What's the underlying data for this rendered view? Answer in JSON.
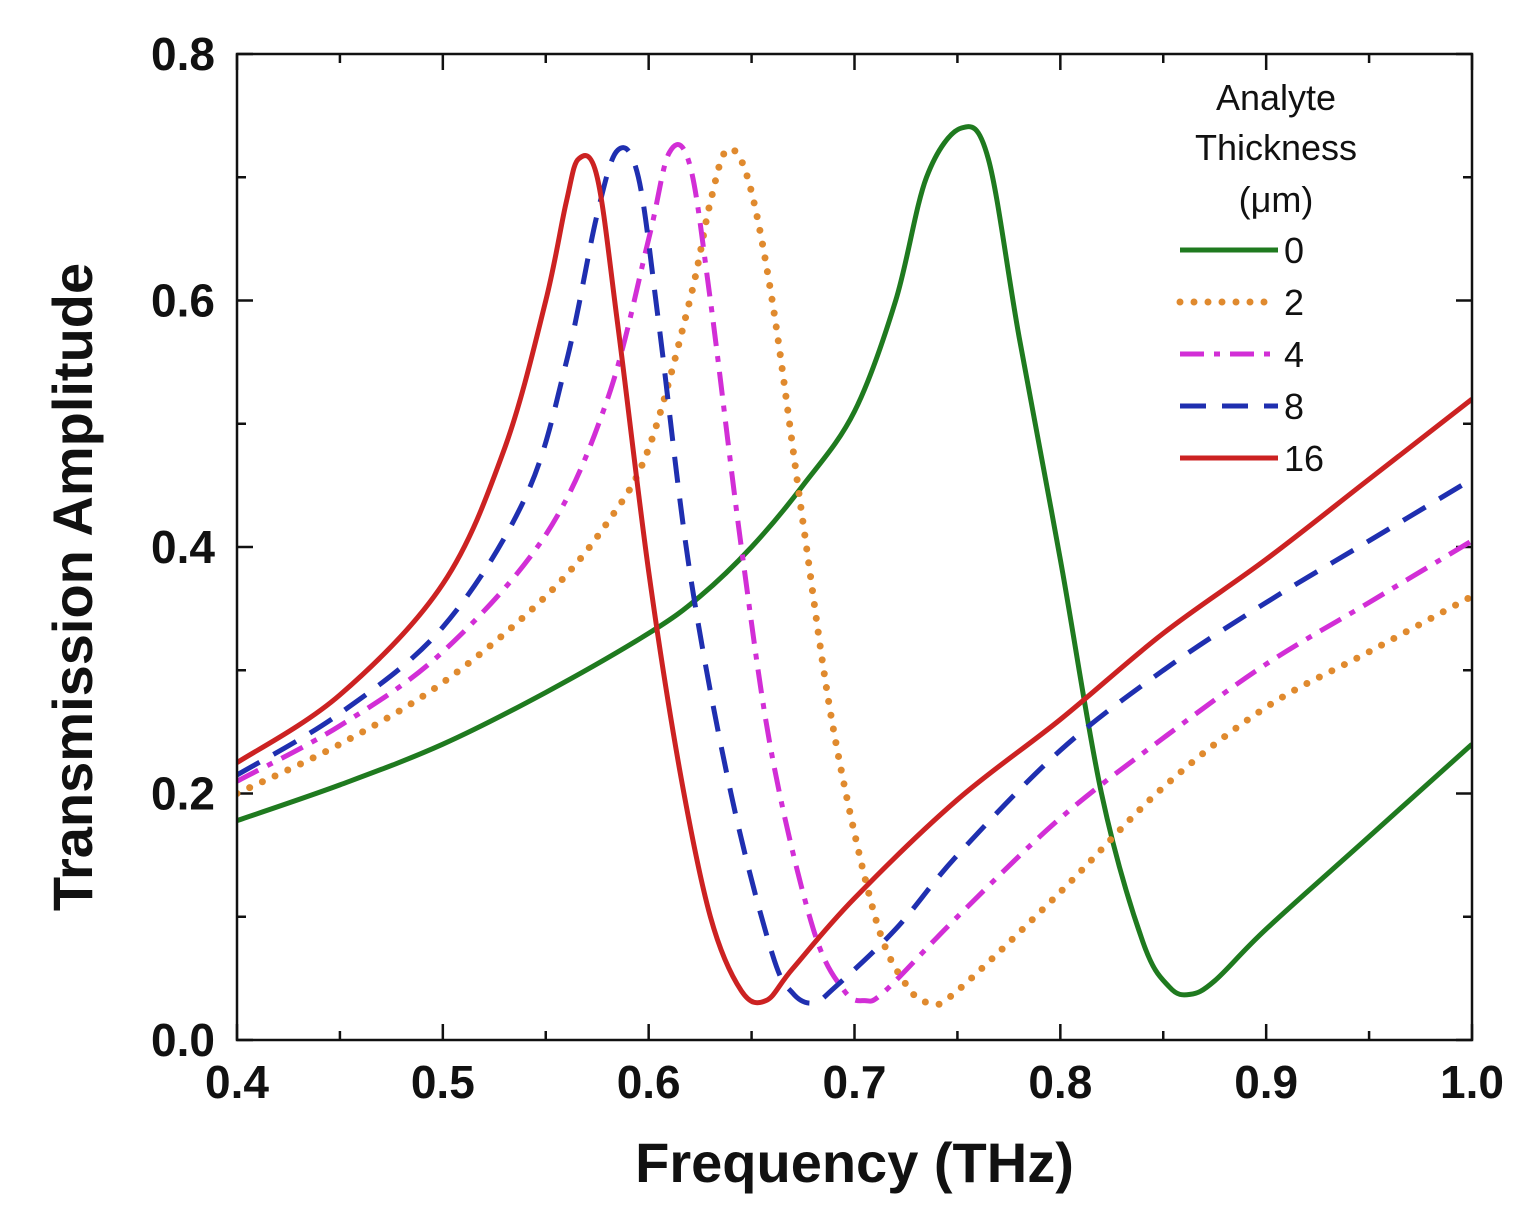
{
  "chart_data": {
    "type": "line",
    "title": "",
    "xlabel": "Frequency (THz)",
    "ylabel": "Transmission Amplitude",
    "xlim": [
      0.4,
      1.0
    ],
    "ylim": [
      0.0,
      0.8
    ],
    "x_major_ticks": [
      0.4,
      0.5,
      0.6,
      0.7,
      0.8,
      0.9,
      1.0
    ],
    "x_tick_labels": [
      "0.4",
      "0.5",
      "0.6",
      "0.7",
      "0.8",
      "0.9",
      "1.0"
    ],
    "y_major_ticks": [
      0.0,
      0.2,
      0.4,
      0.6,
      0.8
    ],
    "y_tick_labels": [
      "0.0",
      "0.2",
      "0.4",
      "0.6",
      "0.8"
    ],
    "grid": false,
    "legend": {
      "placement": "top-right",
      "title_lines": [
        "Analyte",
        "Thickness",
        "(μm)"
      ]
    },
    "series": [
      {
        "name": "0",
        "color": "#1f7a1f",
        "style": "solid",
        "points": [
          [
            0.4,
            0.178
          ],
          [
            0.45,
            0.207
          ],
          [
            0.5,
            0.24
          ],
          [
            0.55,
            0.282
          ],
          [
            0.6,
            0.33
          ],
          [
            0.625,
            0.36
          ],
          [
            0.65,
            0.4
          ],
          [
            0.675,
            0.45
          ],
          [
            0.7,
            0.51
          ],
          [
            0.72,
            0.6
          ],
          [
            0.735,
            0.7
          ],
          [
            0.752,
            0.74
          ],
          [
            0.765,
            0.715
          ],
          [
            0.78,
            0.57
          ],
          [
            0.8,
            0.39
          ],
          [
            0.82,
            0.2
          ],
          [
            0.84,
            0.08
          ],
          [
            0.853,
            0.043
          ],
          [
            0.863,
            0.037
          ],
          [
            0.875,
            0.048
          ],
          [
            0.9,
            0.09
          ],
          [
            0.95,
            0.165
          ],
          [
            1.0,
            0.24
          ]
        ]
      },
      {
        "name": "2",
        "color": "#e08a2e",
        "style": "dotted",
        "points": [
          [
            0.4,
            0.2
          ],
          [
            0.45,
            0.24
          ],
          [
            0.5,
            0.29
          ],
          [
            0.55,
            0.36
          ],
          [
            0.58,
            0.42
          ],
          [
            0.6,
            0.48
          ],
          [
            0.62,
            0.6
          ],
          [
            0.63,
            0.68
          ],
          [
            0.638,
            0.722
          ],
          [
            0.648,
            0.7
          ],
          [
            0.66,
            0.6
          ],
          [
            0.675,
            0.42
          ],
          [
            0.69,
            0.25
          ],
          [
            0.71,
            0.1
          ],
          [
            0.725,
            0.045
          ],
          [
            0.737,
            0.03
          ],
          [
            0.75,
            0.04
          ],
          [
            0.8,
            0.12
          ],
          [
            0.85,
            0.205
          ],
          [
            0.9,
            0.27
          ],
          [
            0.95,
            0.315
          ],
          [
            1.0,
            0.36
          ]
        ]
      },
      {
        "name": "4",
        "color": "#d22ed6",
        "style": "dashdot",
        "points": [
          [
            0.4,
            0.21
          ],
          [
            0.45,
            0.255
          ],
          [
            0.5,
            0.315
          ],
          [
            0.55,
            0.41
          ],
          [
            0.58,
            0.52
          ],
          [
            0.6,
            0.65
          ],
          [
            0.61,
            0.72
          ],
          [
            0.62,
            0.71
          ],
          [
            0.63,
            0.6
          ],
          [
            0.645,
            0.4
          ],
          [
            0.66,
            0.23
          ],
          [
            0.68,
            0.09
          ],
          [
            0.695,
            0.04
          ],
          [
            0.705,
            0.032
          ],
          [
            0.715,
            0.04
          ],
          [
            0.75,
            0.1
          ],
          [
            0.8,
            0.18
          ],
          [
            0.85,
            0.245
          ],
          [
            0.9,
            0.305
          ],
          [
            0.95,
            0.355
          ],
          [
            1.0,
            0.405
          ]
        ]
      },
      {
        "name": "8",
        "color": "#1f2fb0",
        "style": "dashed",
        "points": [
          [
            0.4,
            0.215
          ],
          [
            0.45,
            0.265
          ],
          [
            0.5,
            0.335
          ],
          [
            0.54,
            0.44
          ],
          [
            0.56,
            0.55
          ],
          [
            0.575,
            0.67
          ],
          [
            0.585,
            0.722
          ],
          [
            0.595,
            0.7
          ],
          [
            0.605,
            0.58
          ],
          [
            0.62,
            0.38
          ],
          [
            0.64,
            0.2
          ],
          [
            0.66,
            0.07
          ],
          [
            0.67,
            0.038
          ],
          [
            0.68,
            0.03
          ],
          [
            0.69,
            0.042
          ],
          [
            0.72,
            0.09
          ],
          [
            0.75,
            0.15
          ],
          [
            0.8,
            0.235
          ],
          [
            0.85,
            0.3
          ],
          [
            0.9,
            0.355
          ],
          [
            0.95,
            0.405
          ],
          [
            1.0,
            0.455
          ]
        ]
      },
      {
        "name": "16",
        "color": "#cc2222",
        "style": "solid",
        "points": [
          [
            0.4,
            0.225
          ],
          [
            0.45,
            0.28
          ],
          [
            0.5,
            0.37
          ],
          [
            0.53,
            0.48
          ],
          [
            0.55,
            0.6
          ],
          [
            0.56,
            0.68
          ],
          [
            0.566,
            0.715
          ],
          [
            0.575,
            0.7
          ],
          [
            0.585,
            0.58
          ],
          [
            0.6,
            0.38
          ],
          [
            0.615,
            0.22
          ],
          [
            0.63,
            0.1
          ],
          [
            0.645,
            0.04
          ],
          [
            0.657,
            0.032
          ],
          [
            0.67,
            0.058
          ],
          [
            0.7,
            0.115
          ],
          [
            0.75,
            0.195
          ],
          [
            0.8,
            0.26
          ],
          [
            0.85,
            0.33
          ],
          [
            0.9,
            0.39
          ],
          [
            0.95,
            0.455
          ],
          [
            1.0,
            0.52
          ]
        ]
      }
    ]
  }
}
